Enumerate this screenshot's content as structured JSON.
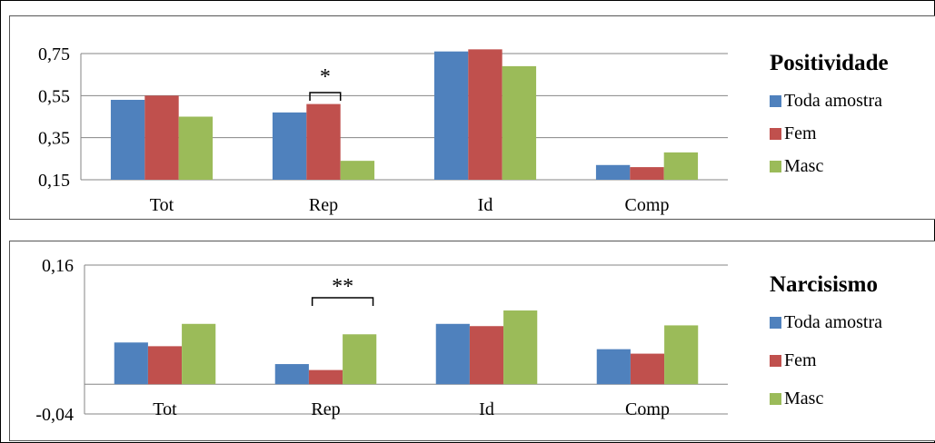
{
  "chart_data": [
    {
      "type": "bar",
      "title": "Positividade",
      "categories": [
        "Tot",
        "Rep",
        "Id",
        "Comp"
      ],
      "series": [
        {
          "name": "Toda amostra",
          "values": [
            0.53,
            0.47,
            0.76,
            0.22
          ]
        },
        {
          "name": "Fem",
          "values": [
            0.55,
            0.51,
            0.77,
            0.21
          ]
        },
        {
          "name": "Masc",
          "values": [
            0.45,
            0.24,
            0.69,
            0.28
          ]
        }
      ],
      "ylim": [
        0.15,
        0.75
      ],
      "yticks": [
        "0,75",
        "0,55",
        "0,35",
        "0,15"
      ],
      "annotations": [
        {
          "category": "Rep",
          "text": "*"
        }
      ],
      "legend_position": "right",
      "grid": true
    },
    {
      "type": "bar",
      "title": "Narcisismo",
      "categories": [
        "Tot",
        "Rep",
        "Id",
        "Comp"
      ],
      "series": [
        {
          "name": "Toda amostra",
          "values": [
            0.056,
            0.027,
            0.081,
            0.047
          ]
        },
        {
          "name": "Fem",
          "values": [
            0.051,
            0.019,
            0.078,
            0.041
          ]
        },
        {
          "name": "Masc",
          "values": [
            0.081,
            0.067,
            0.099,
            0.079
          ]
        }
      ],
      "ylim": [
        -0.04,
        0.16
      ],
      "yticks": [
        "0,16",
        "-0,04"
      ],
      "annotations": [
        {
          "category": "Rep",
          "text": "**"
        }
      ],
      "legend_position": "right",
      "grid": false
    }
  ],
  "colors": {
    "Toda amostra": "#4f81bd",
    "Fem": "#c0504d",
    "Masc": "#9bbb59"
  }
}
